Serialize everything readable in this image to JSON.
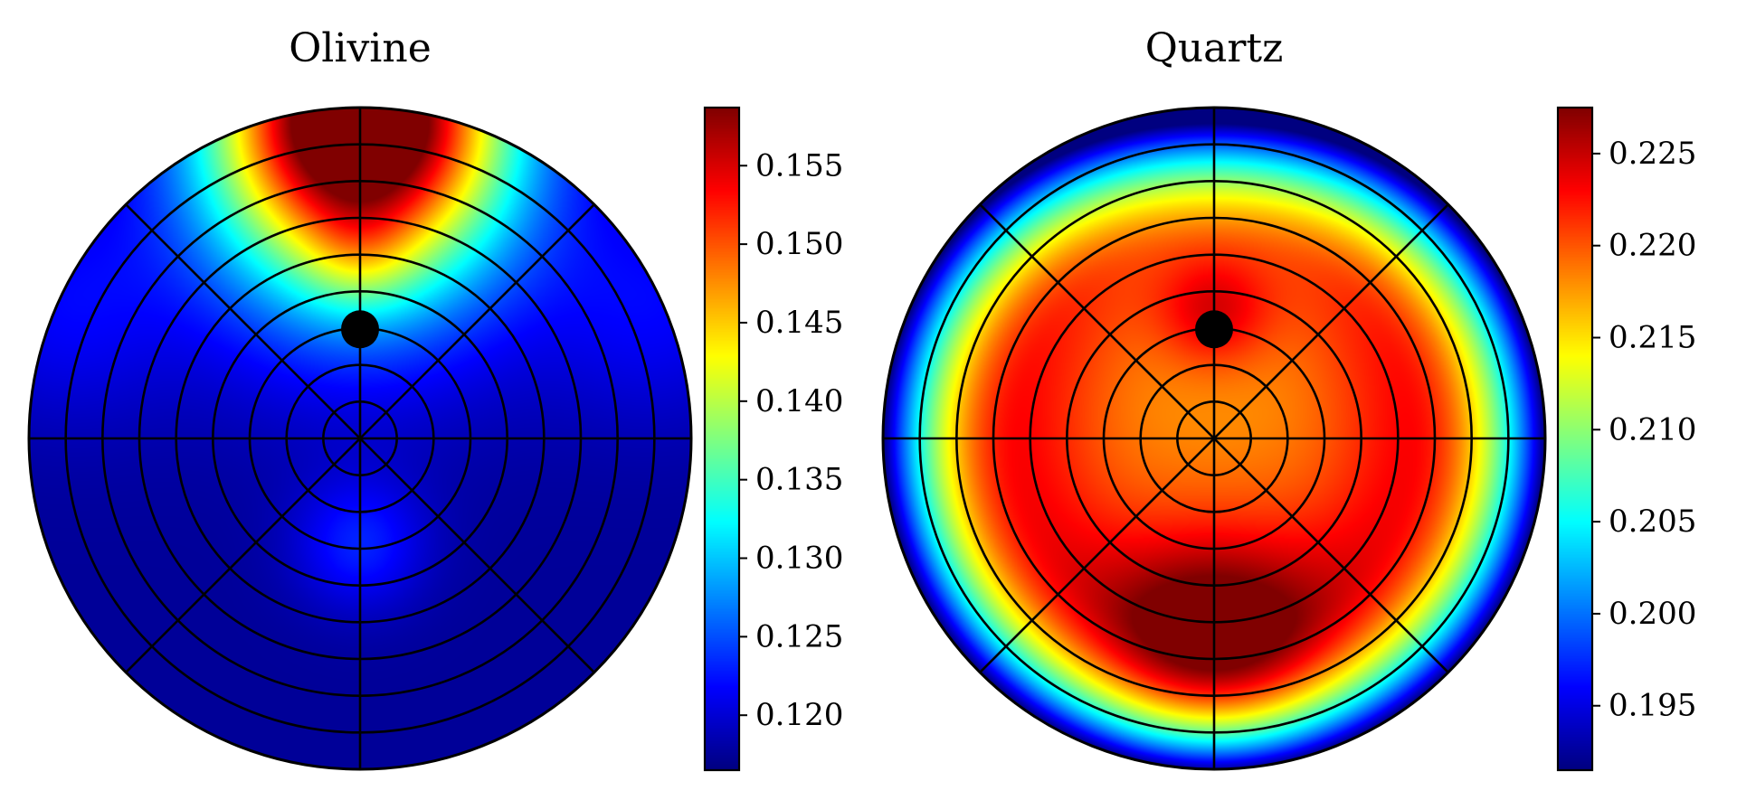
{
  "chart_data": [
    {
      "type": "heatmap",
      "projection": "polar stereonet",
      "title": "Olivine",
      "colormap": "jet",
      "colorbar": {
        "range": [
          0.1165,
          0.1587
        ],
        "ticks": [
          0.12,
          0.125,
          0.13,
          0.135,
          0.14,
          0.145,
          0.15,
          0.155
        ],
        "tick_labels": [
          "0.120",
          "0.125",
          "0.130",
          "0.135",
          "0.140",
          "0.145",
          "0.150",
          "0.155"
        ]
      },
      "grid": true,
      "ring_count": 9,
      "radial_directions": 8,
      "marker": {
        "shape": "circle",
        "color": "#000000",
        "r_fraction": 0.33,
        "azimuth": "up"
      },
      "field": {
        "base": 0.1175,
        "blobs": [
          {
            "x": 0.0,
            "y": 1.0,
            "amp": 0.043,
            "sigma": 0.3
          },
          {
            "x": 0.0,
            "y": 0.7,
            "amp": 0.012,
            "sigma": 0.35
          },
          {
            "x": 0.0,
            "y": -0.32,
            "amp": 0.0055,
            "sigma": 0.14
          },
          {
            "x": 0.0,
            "y": 0.55,
            "amp": 0.0045,
            "sigma": 0.12
          },
          {
            "x": -0.9,
            "y": 0.4,
            "amp": 0.004,
            "sigma": 0.25
          },
          {
            "x": 0.9,
            "y": 0.4,
            "amp": 0.004,
            "sigma": 0.25
          }
        ]
      }
    },
    {
      "type": "heatmap",
      "projection": "polar stereonet",
      "title": "Quartz",
      "colormap": "jet",
      "colorbar": {
        "range": [
          0.1915,
          0.2275
        ],
        "ticks": [
          0.195,
          0.2,
          0.205,
          0.21,
          0.215,
          0.22,
          0.225
        ],
        "tick_labels": [
          "0.195",
          "0.200",
          "0.205",
          "0.210",
          "0.215",
          "0.220",
          "0.225"
        ]
      },
      "grid": true,
      "ring_count": 9,
      "radial_directions": 8,
      "marker": {
        "shape": "circle",
        "color": "#000000",
        "r_fraction": 0.33,
        "azimuth": "up"
      },
      "field": {
        "base": 0.2185,
        "ring_amp": 0.005,
        "edge_drop": 0.028,
        "blobs": [
          {
            "x": 0.0,
            "y": -0.58,
            "amp": 0.008,
            "sigma": 0.22
          },
          {
            "x": 0.0,
            "y": 0.38,
            "amp": 0.006,
            "sigma": 0.12
          },
          {
            "x": 0.0,
            "y": 1.0,
            "amp": -0.0065,
            "sigma": 0.45
          }
        ]
      }
    }
  ]
}
